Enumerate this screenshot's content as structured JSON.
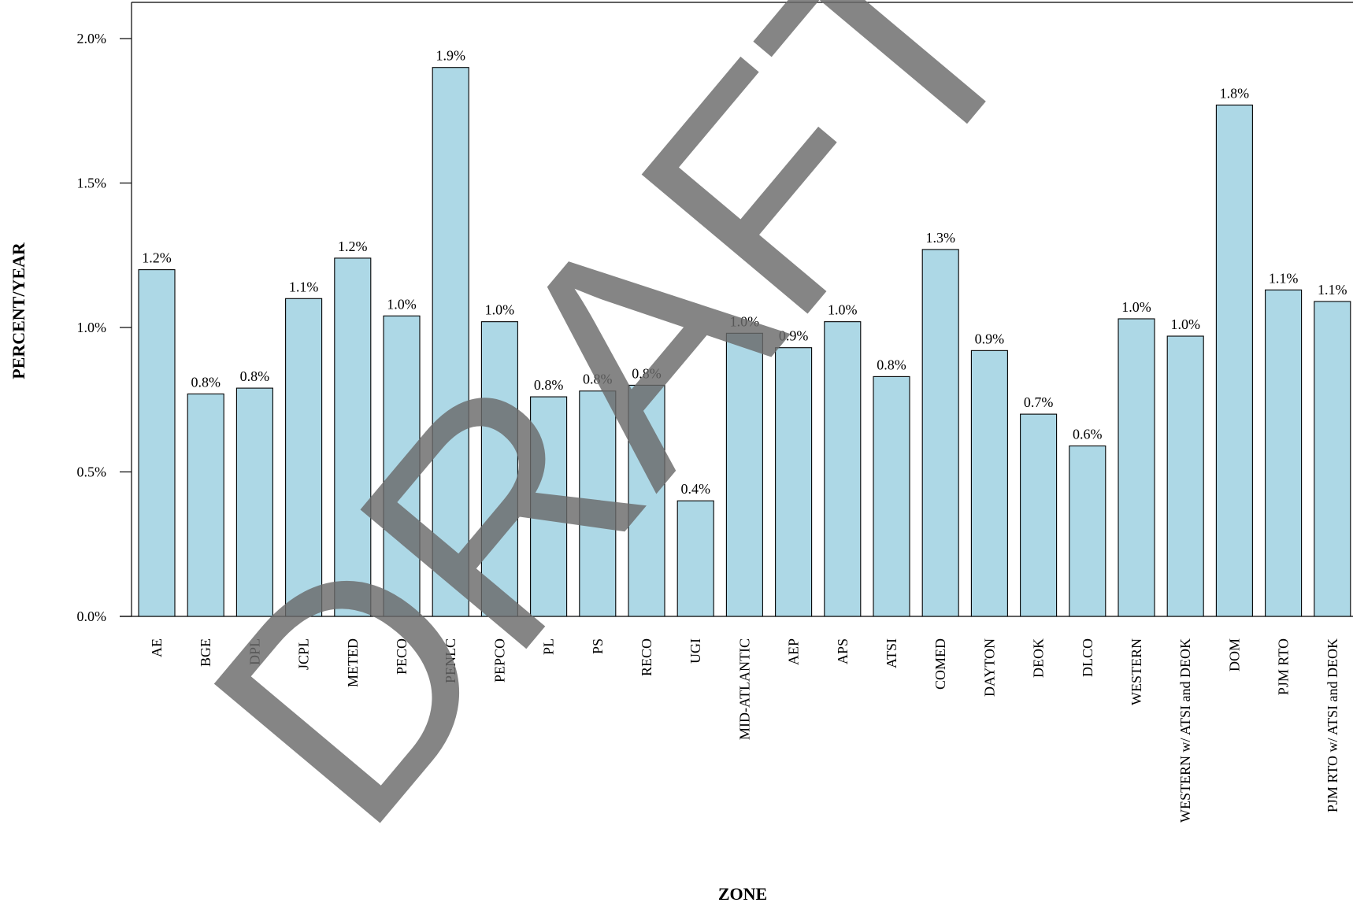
{
  "chart_data": {
    "type": "bar",
    "categories": [
      "AE",
      "BGE",
      "DPL",
      "JCPL",
      "METED",
      "PECO",
      "PENLC",
      "PEPCO",
      "PL",
      "PS",
      "RECO",
      "UGI",
      "MID-ATLANTIC",
      "AEP",
      "APS",
      "ATSI",
      "COMED",
      "DAYTON",
      "DEOK",
      "DLCO",
      "WESTERN",
      "WESTERN w/ ATSI and DEOK",
      "DOM",
      "PJM RTO",
      "PJM RTO w/ ATSI and DEOK"
    ],
    "values": [
      1.2,
      0.77,
      0.79,
      1.1,
      1.24,
      1.04,
      1.9,
      1.02,
      0.76,
      0.78,
      0.8,
      0.4,
      0.98,
      0.93,
      1.02,
      0.83,
      1.27,
      0.92,
      0.7,
      0.59,
      1.03,
      0.97,
      1.77,
      1.13,
      1.09
    ],
    "data_labels": [
      "1.2%",
      "0.8%",
      "0.8%",
      "1.1%",
      "1.2%",
      "1.0%",
      "1.9%",
      "1.0%",
      "0.8%",
      "0.8%",
      "0.8%",
      "0.4%",
      "1.0%",
      "0.9%",
      "1.0%",
      "0.8%",
      "1.3%",
      "0.9%",
      "0.7%",
      "0.6%",
      "1.0%",
      "1.0%",
      "1.8%",
      "1.1%",
      "1.1%"
    ],
    "xlabel": "ZONE",
    "ylabel": "PERCENT/YEAR",
    "yticks": [
      0.0,
      0.5,
      1.0,
      1.5,
      2.0
    ],
    "ytick_labels": [
      "0.0%",
      "0.5%",
      "1.0%",
      "1.5%",
      "2.0%"
    ],
    "ylim": [
      0,
      2.1
    ],
    "grid": false,
    "colors": {
      "bar_fill": "#add8e6",
      "bar_stroke": "#000000"
    }
  },
  "watermark": {
    "text": "DRAFT"
  }
}
